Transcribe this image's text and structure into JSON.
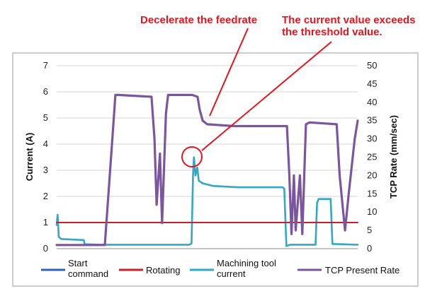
{
  "chart_data": {
    "type": "line",
    "xlabel": "",
    "ylabel": "Current (A)",
    "y2label": "TCP Rate (mm/sec)",
    "ylim": [
      0,
      7
    ],
    "y2lim": [
      0,
      50
    ],
    "yticks": [
      "0",
      "1",
      "2",
      "3",
      "4",
      "5",
      "6",
      "7"
    ],
    "y2ticks": [
      "0",
      "5",
      "10",
      "15",
      "20",
      "25",
      "30",
      "35",
      "40",
      "45",
      "50"
    ],
    "grid": "horizontal",
    "legend_position": "bottom",
    "series": [
      {
        "name": "Start command",
        "color": "#2e63b5",
        "axis": "left",
        "points": []
      },
      {
        "name": "Rotating",
        "color": "#c8202a",
        "axis": "left",
        "points": [
          [
            0,
            1
          ],
          [
            100,
            1
          ]
        ]
      },
      {
        "name": "Machining tool current",
        "color": "#33a7c4",
        "axis": "left",
        "points": [
          [
            0,
            0.9
          ],
          [
            0.3,
            1.3
          ],
          [
            0.7,
            0.45
          ],
          [
            1.5,
            0.37
          ],
          [
            5,
            0.35
          ],
          [
            9,
            0.33
          ],
          [
            9.3,
            0.17
          ],
          [
            15,
            0.15
          ],
          [
            30,
            0.15
          ],
          [
            44,
            0.15
          ],
          [
            44.8,
            0.2
          ],
          [
            45.3,
            2.8
          ],
          [
            45.6,
            3.5
          ],
          [
            46.1,
            2.8
          ],
          [
            46.7,
            3.1
          ],
          [
            47.2,
            2.6
          ],
          [
            48.5,
            2.5
          ],
          [
            52,
            2.4
          ],
          [
            60,
            2.35
          ],
          [
            70,
            2.35
          ],
          [
            75,
            2.35
          ],
          [
            75.6,
            2.3
          ],
          [
            76.3,
            0.1
          ],
          [
            77.5,
            0.15
          ],
          [
            86,
            0.15
          ],
          [
            86.5,
            1.75
          ],
          [
            87,
            1.9
          ],
          [
            91,
            1.9
          ],
          [
            91.6,
            0.18
          ],
          [
            100,
            0.15
          ]
        ]
      },
      {
        "name": "TCP Present Rate",
        "color": "#7b569f",
        "axis": "right",
        "points": [
          [
            0,
            1
          ],
          [
            10,
            1
          ],
          [
            16,
            1
          ],
          [
            18.5,
            30
          ],
          [
            19.5,
            42
          ],
          [
            20.5,
            42
          ],
          [
            31.5,
            41.5
          ],
          [
            32.5,
            30
          ],
          [
            33.2,
            12
          ],
          [
            34.3,
            26
          ],
          [
            35,
            7
          ],
          [
            36.3,
            37
          ],
          [
            37,
            42
          ],
          [
            45,
            42
          ],
          [
            46.8,
            41.5
          ],
          [
            47.5,
            38
          ],
          [
            48.5,
            35
          ],
          [
            50,
            34
          ],
          [
            59,
            33.5
          ],
          [
            70,
            33.5
          ],
          [
            76.5,
            33.5
          ],
          [
            77.3,
            20
          ],
          [
            78,
            4
          ],
          [
            78.8,
            20
          ],
          [
            79.4,
            5
          ],
          [
            80.8,
            20
          ],
          [
            81.6,
            4
          ],
          [
            82.8,
            34
          ],
          [
            84,
            34.5
          ],
          [
            93,
            34
          ],
          [
            94,
            20
          ],
          [
            95.8,
            5
          ],
          [
            97,
            15
          ],
          [
            99,
            30
          ],
          [
            100,
            35
          ]
        ]
      }
    ],
    "annotations": [
      {
        "text": "Decelerate the feedrate"
      },
      {
        "lines": [
          "The current value exceeds",
          "the threshold value."
        ]
      }
    ]
  }
}
